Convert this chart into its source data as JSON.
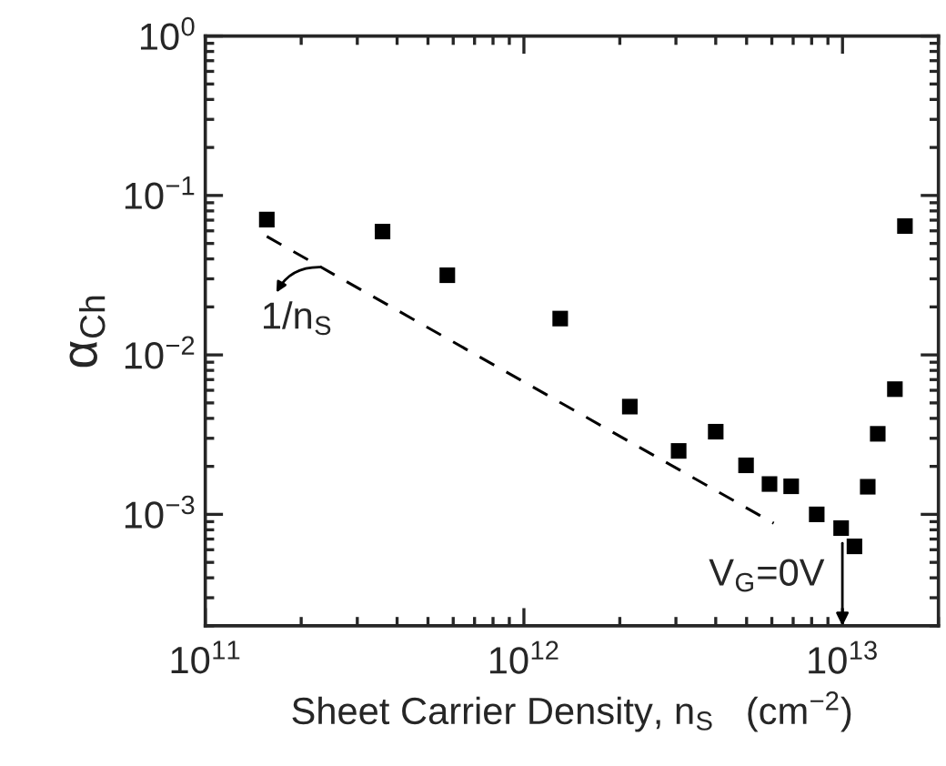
{
  "chart_data": {
    "type": "scatter",
    "xlabel": "Sheet Carrier Density, n$_{S}$   (cm$^{−2}$)",
    "ylabel": "α$_{Ch}$",
    "log": "xy",
    "xlim": [
      100000000000.0,
      20000000000000.0
    ],
    "ylim": [
      0.0002,
      1
    ],
    "xticks": [
      {
        "value": 100000000000.0,
        "label": "10$^{11}$"
      },
      {
        "value": 1000000000000.0,
        "label": "10$^{12}$"
      },
      {
        "value": 10000000000000.0,
        "label": "10$^{13}$"
      }
    ],
    "yticks": [
      {
        "value": 0.001,
        "label": "10$^{−3}$"
      },
      {
        "value": 0.01,
        "label": "10$^{−2}$"
      },
      {
        "value": 0.1,
        "label": "10$^{−1}$"
      },
      {
        "value": 1,
        "label": "10$^{0}$"
      }
    ],
    "grid": false,
    "legend": false,
    "series": [
      {
        "type": "scatter",
        "color": "#000000",
        "marker": "square",
        "x": [
          156000000000.0,
          360000000000.0,
          575000000000.0,
          1300000000000.0,
          2150000000000.0,
          3060000000000.0,
          4000000000000.0,
          4980000000000.0,
          5900000000000.0,
          6900000000000.0,
          8300000000000.0,
          9900000000000.0,
          10900000000000.0,
          12000000000000.0,
          12900000000000.0,
          14600000000000.0,
          15700000000000.0
        ],
        "values": [
          0.0706,
          0.0594,
          0.0316,
          0.0169,
          0.00474,
          0.0025,
          0.0033,
          0.00203,
          0.00155,
          0.0015,
          0.001,
          0.00082,
          0.00063,
          0.00149,
          0.0032,
          0.0061,
          0.0643
        ]
      },
      {
        "type": "line",
        "color": "#000000",
        "line_style": "dashed",
        "marker": "none",
        "x": [
          156000000000.0,
          6080000000000.0
        ],
        "values": [
          0.0553,
          0.00088
        ]
      }
    ],
    "annotations": [
      "1/n$_{S}$",
      "V$_{G}$=0V"
    ]
  }
}
